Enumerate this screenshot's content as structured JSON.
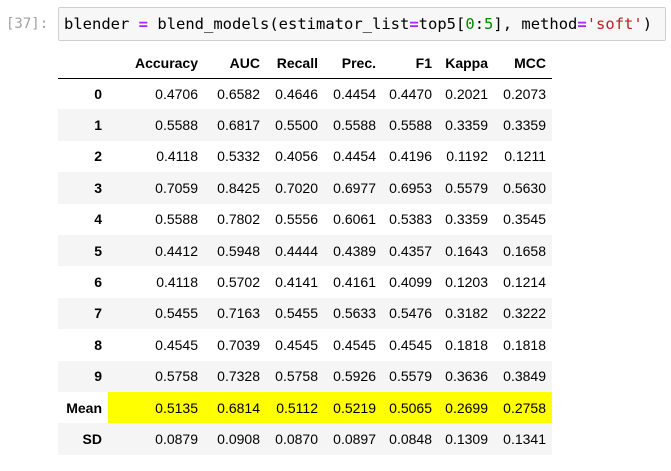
{
  "cell": {
    "prompt": "[37]:",
    "code": {
      "var": "blender",
      "eq": "=",
      "func": "blend_models(estimator_list",
      "eq2": "=",
      "arg1": "top5[",
      "n0": "0",
      "colon": ":",
      "n5": "5",
      "arg2": "], method",
      "eq3": "=",
      "str": "'soft'",
      "close": ")"
    }
  },
  "table": {
    "columns": [
      "",
      "Accuracy",
      "AUC",
      "Recall",
      "Prec.",
      "F1",
      "Kappa",
      "MCC"
    ],
    "rows": [
      {
        "index": "0",
        "values": [
          "0.4706",
          "0.6582",
          "0.4646",
          "0.4454",
          "0.4470",
          "0.2021",
          "0.2073"
        ]
      },
      {
        "index": "1",
        "values": [
          "0.5588",
          "0.6817",
          "0.5500",
          "0.5588",
          "0.5588",
          "0.3359",
          "0.3359"
        ]
      },
      {
        "index": "2",
        "values": [
          "0.4118",
          "0.5332",
          "0.4056",
          "0.4454",
          "0.4196",
          "0.1192",
          "0.1211"
        ]
      },
      {
        "index": "3",
        "values": [
          "0.7059",
          "0.8425",
          "0.7020",
          "0.6977",
          "0.6953",
          "0.5579",
          "0.5630"
        ]
      },
      {
        "index": "4",
        "values": [
          "0.5588",
          "0.7802",
          "0.5556",
          "0.6061",
          "0.5383",
          "0.3359",
          "0.3545"
        ]
      },
      {
        "index": "5",
        "values": [
          "0.4412",
          "0.5948",
          "0.4444",
          "0.4389",
          "0.4357",
          "0.1643",
          "0.1658"
        ]
      },
      {
        "index": "6",
        "values": [
          "0.4118",
          "0.5702",
          "0.4141",
          "0.4161",
          "0.4099",
          "0.1203",
          "0.1214"
        ]
      },
      {
        "index": "7",
        "values": [
          "0.5455",
          "0.7163",
          "0.5455",
          "0.5633",
          "0.5476",
          "0.3182",
          "0.3222"
        ]
      },
      {
        "index": "8",
        "values": [
          "0.4545",
          "0.7039",
          "0.4545",
          "0.4545",
          "0.4545",
          "0.1818",
          "0.1818"
        ]
      },
      {
        "index": "9",
        "values": [
          "0.5758",
          "0.7328",
          "0.5758",
          "0.5926",
          "0.5579",
          "0.3636",
          "0.3849"
        ]
      },
      {
        "index": "Mean",
        "values": [
          "0.5135",
          "0.6814",
          "0.5112",
          "0.5219",
          "0.5065",
          "0.2699",
          "0.2758"
        ]
      },
      {
        "index": "SD",
        "values": [
          "0.0879",
          "0.0908",
          "0.0870",
          "0.0897",
          "0.0848",
          "0.1309",
          "0.1341"
        ]
      }
    ],
    "highlight_row": "Mean",
    "highlight_color": "#ffff00"
  }
}
